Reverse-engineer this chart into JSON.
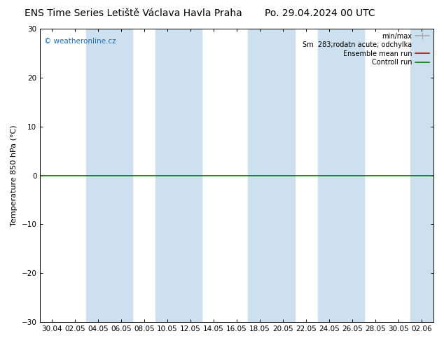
{
  "title_left": "ENS Time Series Letiště Václava Havla Praha",
  "title_right": "Po. 29.04.2024 00 UTC",
  "ylabel": "Temperature 850 hPa (°C)",
  "ylim": [
    -30,
    30
  ],
  "yticks": [
    -30,
    -20,
    -10,
    0,
    10,
    20,
    30
  ],
  "x_labels": [
    "30.04",
    "02.05",
    "04.05",
    "06.05",
    "08.05",
    "10.05",
    "12.05",
    "14.05",
    "16.05",
    "18.05",
    "20.05",
    "22.05",
    "24.05",
    "26.05",
    "28.05",
    "30.05",
    "02.06"
  ],
  "background_color": "#ffffff",
  "band_color": "#cde0ef",
  "zero_line_color": "#007700",
  "watermark": "© weatheronline.cz",
  "watermark_color": "#1a6eb5",
  "title_fontsize": 10,
  "axis_fontsize": 7.5,
  "ylabel_fontsize": 8
}
